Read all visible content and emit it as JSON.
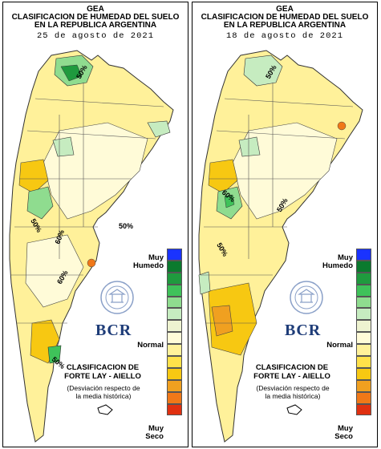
{
  "panels": [
    {
      "title_line1": "GEA",
      "title_line2": "CLASIFICACION DE HUMEDAD DEL SUELO",
      "title_line3": "EN LA REPUBLICA ARGENTINA",
      "date": "25 de agosto de 2021",
      "isolines": [
        "50%",
        "50%",
        "50%",
        "60%",
        "60%",
        "50%",
        "50%"
      ]
    },
    {
      "title_line1": "GEA",
      "title_line2": "CLASIFICACION DE HUMEDAD DEL SUELO",
      "title_line3": "EN LA REPUBLICA ARGENTINA",
      "date": "18 de agosto de 2021",
      "isolines": [
        "50%",
        "50%",
        "60%",
        "50%"
      ]
    }
  ],
  "legend": {
    "top_label_1": "Muy",
    "top_label_2": "Humedo",
    "middle_label": "Normal",
    "bottom_label_1": "Muy",
    "bottom_label_2": "Seco",
    "colors": [
      "#1a33ff",
      "#0b7a2e",
      "#1f9a3e",
      "#3fc25a",
      "#8fdc8f",
      "#c6ecc0",
      "#eef3d0",
      "#fffbd8",
      "#fff19a",
      "#ffe14a",
      "#f7c812",
      "#f0a020",
      "#f07818",
      "#e03010"
    ]
  },
  "classification": {
    "line1": "CLASIFICACION DE",
    "line2": "FORTE LAY - AIELLO",
    "desc1": "(Desviación respecto de",
    "desc2": "la media histórica)"
  },
  "logo": {
    "name": "BCR",
    "seal_text": "BOLSA DE COMERCIO DE ROSARIO"
  }
}
